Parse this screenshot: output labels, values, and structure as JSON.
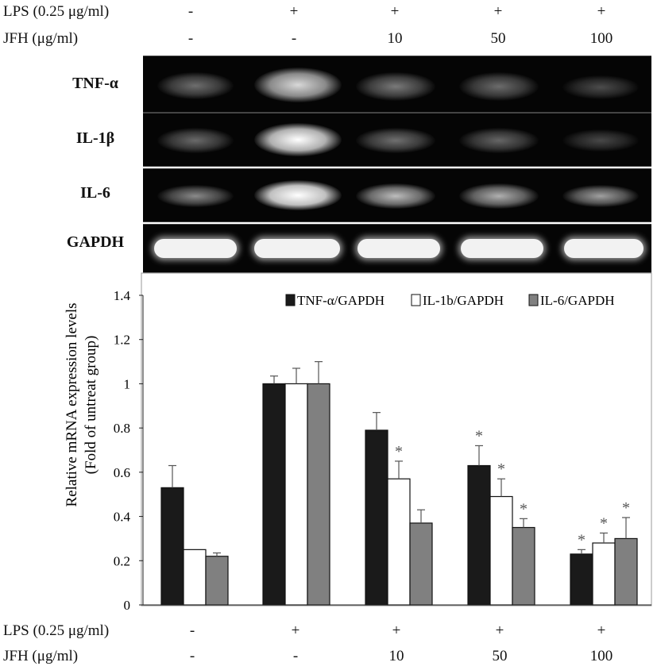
{
  "treatment_rows": {
    "lps_label": "LPS (0.25 μg/ml)",
    "jfh_label": "JFH (μg/ml)",
    "lps_values": [
      "-",
      "+",
      "+",
      "+",
      "+"
    ],
    "jfh_values": [
      "-",
      "-",
      "10",
      "50",
      "100"
    ]
  },
  "gel": {
    "labels": [
      "TNF-α",
      "IL-1β",
      "IL-6",
      "GAPDH"
    ]
  },
  "chart_data": {
    "type": "bar",
    "categories": [
      "1",
      "2",
      "3",
      "4",
      "5"
    ],
    "series": [
      {
        "name": "TNF-α/GAPDH",
        "values": [
          0.53,
          1.0,
          0.79,
          0.63,
          0.23
        ],
        "errors": [
          0.1,
          0.035,
          0.08,
          0.09,
          0.02
        ],
        "color": "#1a1a1a"
      },
      {
        "name": "IL-1b/GAPDH",
        "values": [
          0.25,
          1.0,
          0.57,
          0.49,
          0.28
        ],
        "errors": [
          0.0,
          0.07,
          0.08,
          0.08,
          0.045
        ],
        "color": "#ffffff"
      },
      {
        "name": "IL-6/GAPDH",
        "values": [
          0.22,
          1.0,
          0.37,
          0.35,
          0.3
        ],
        "errors": [
          0.015,
          0.1,
          0.06,
          0.04,
          0.095
        ],
        "color": "#808080"
      }
    ],
    "significance": [
      [
        "",
        "",
        "",
        "*",
        "*"
      ],
      [
        "",
        "",
        "*",
        "*",
        "*"
      ],
      [
        "",
        "",
        "",
        "*",
        "*"
      ]
    ],
    "ylabel": "Relative mRNA expression levels",
    "ylabel2": "(Fold of untreat group)",
    "ylim": [
      0,
      1.4
    ],
    "yticks": [
      "0",
      "0.2",
      "0.4",
      "0.6",
      "0.8",
      "1",
      "1.2",
      "1.4"
    ],
    "legend_position": "top-right",
    "grid": false
  }
}
